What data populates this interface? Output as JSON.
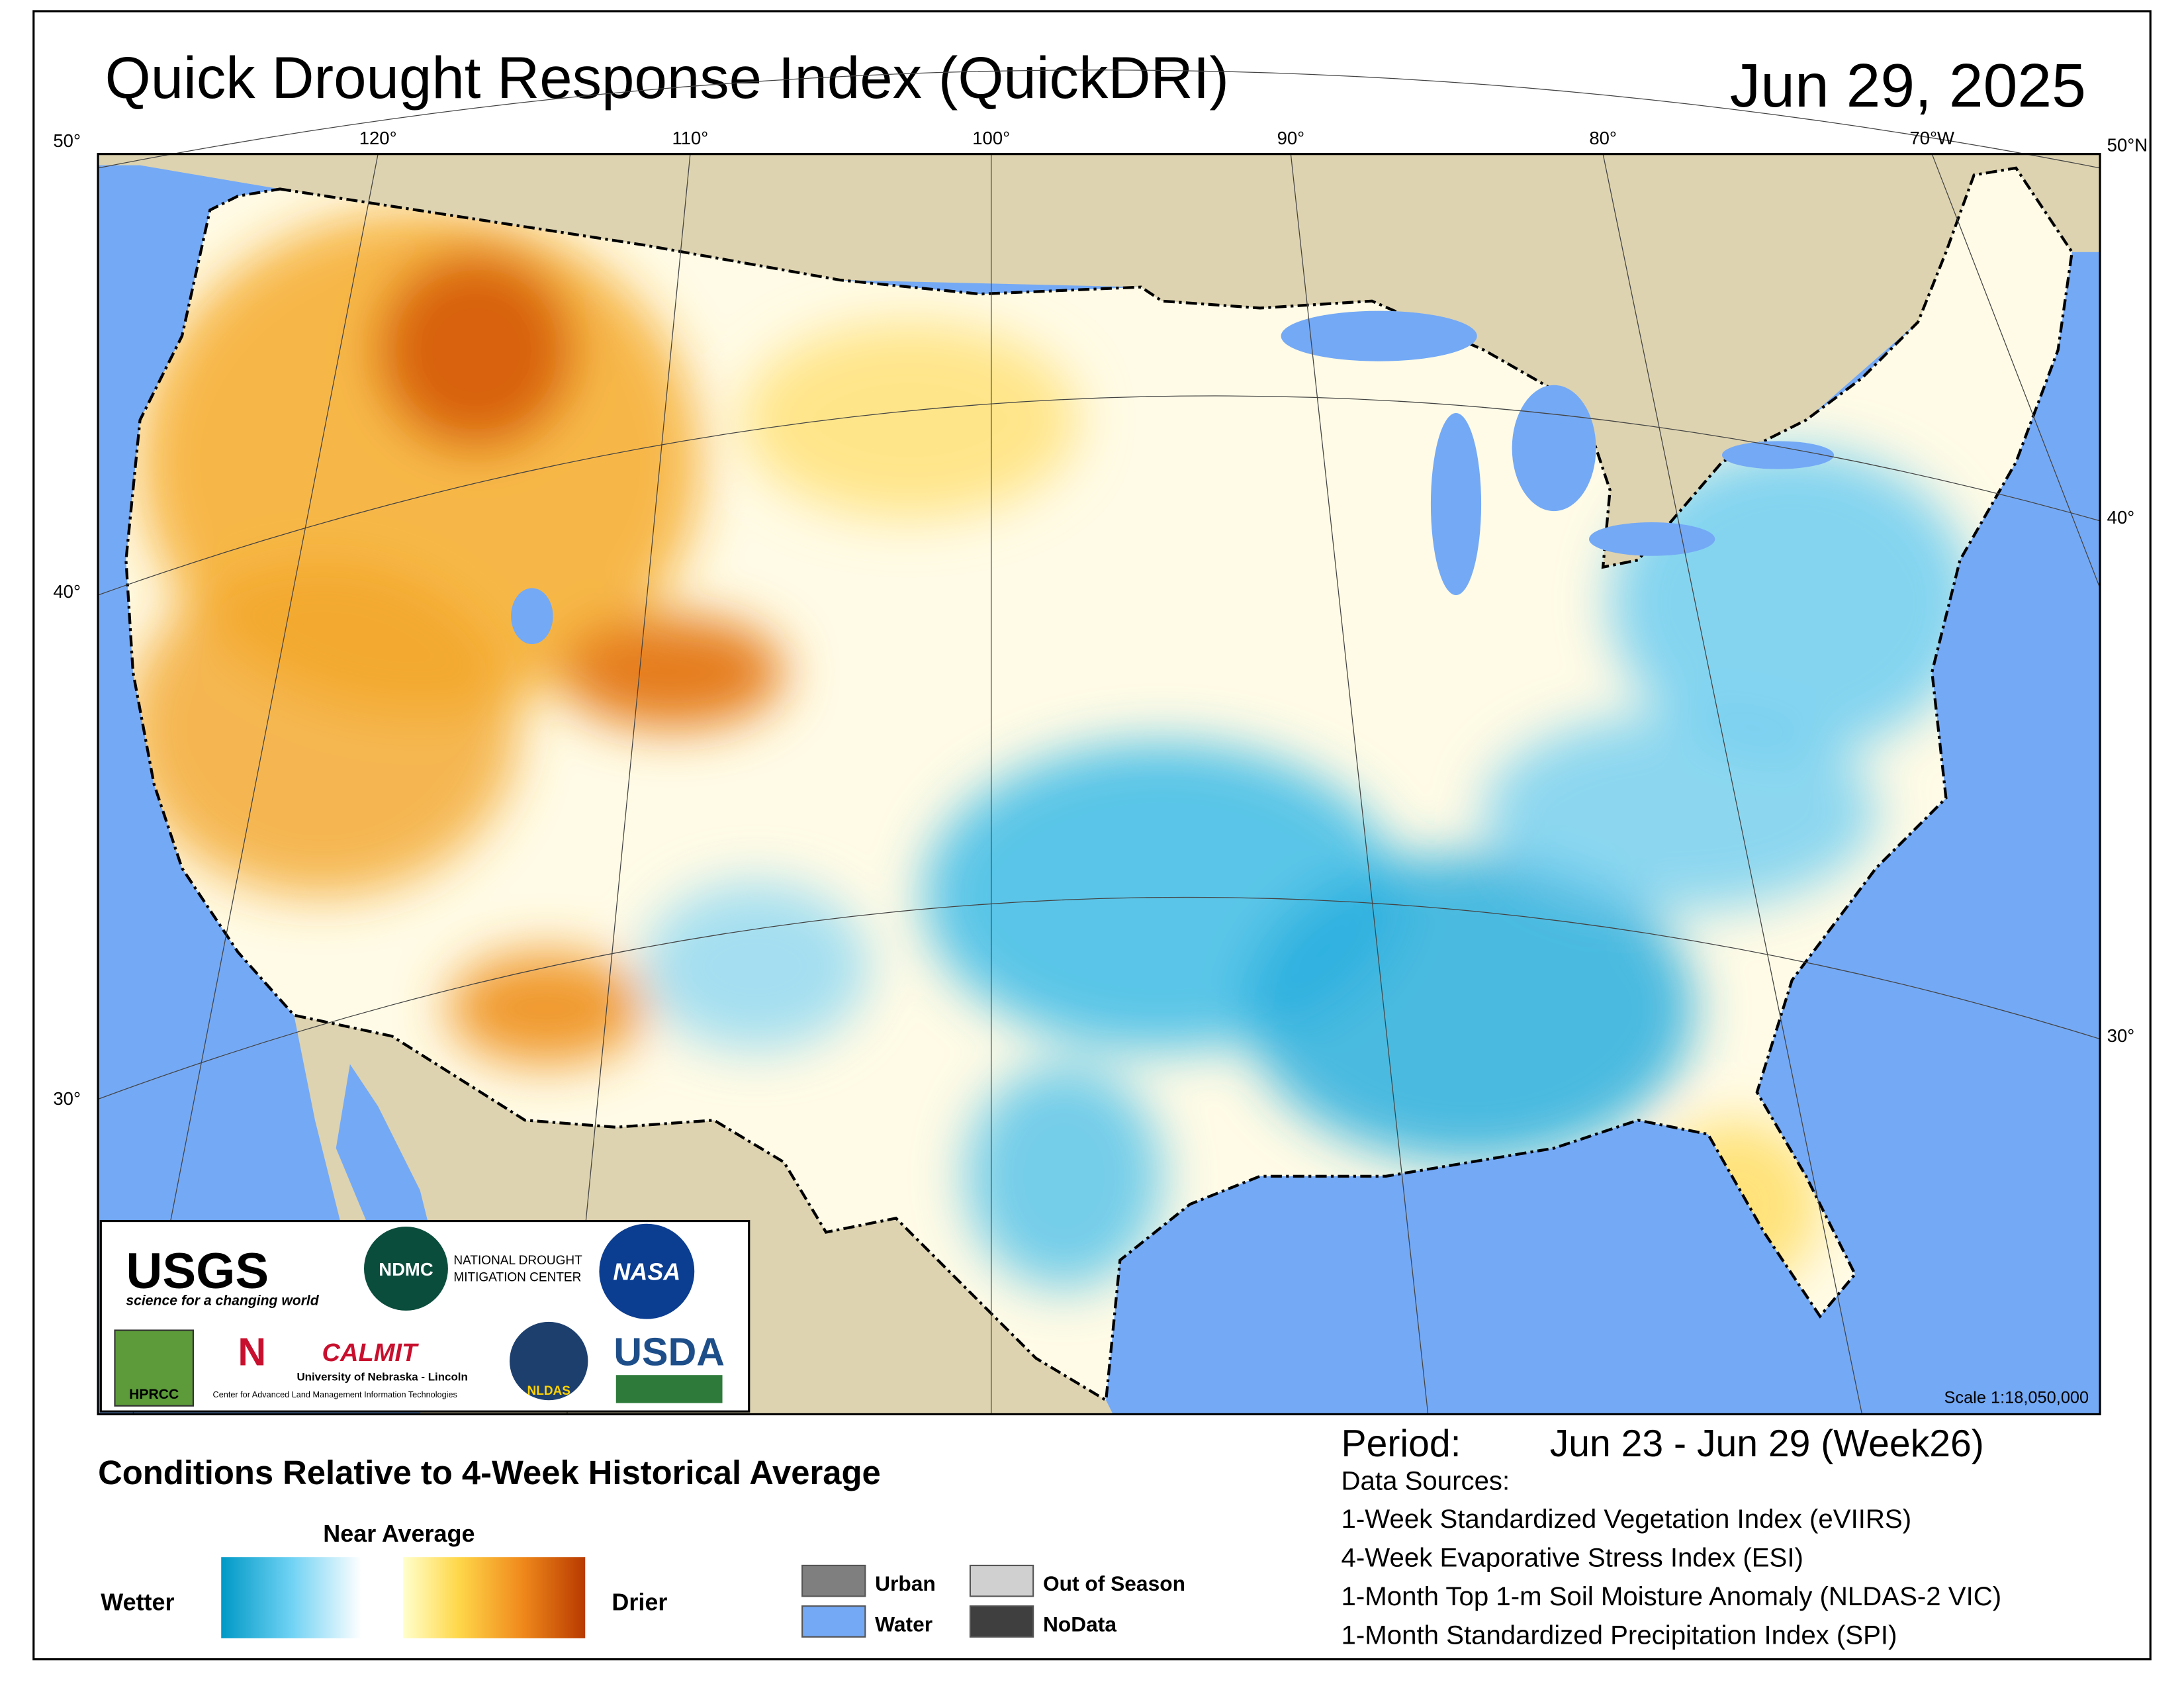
{
  "title": "Quick Drought Response Index (QuickDRI)",
  "date": "Jun 29, 2025",
  "map": {
    "lon_labels": [
      "120°",
      "110°",
      "100°",
      "90°",
      "80°",
      "70°W"
    ],
    "lat_labels_left": [
      "50°",
      "40°",
      "30°"
    ],
    "lat_labels_right": [
      "50°N",
      "40°",
      "30°"
    ],
    "scale": "Scale 1:18,050,000"
  },
  "logos": {
    "usgs": "USGS",
    "usgs_tagline": "science for a changing world",
    "ndmc": "NDMC",
    "ndmc_name_1": "NATIONAL DROUGHT",
    "ndmc_name_2": "MITIGATION CENTER",
    "nasa": "NASA",
    "hprcc": "HPRCC",
    "calmit": "CALMIT",
    "calmit_univ": "University of Nebraska - Lincoln",
    "calmit_full": "Center for Advanced Land Management Information Technologies",
    "nldas": "NLDAS",
    "usda": "USDA"
  },
  "legend": {
    "heading": "Conditions Relative to 4-Week Historical Average",
    "near": "Near Average",
    "wetter": "Wetter",
    "drier": "Drier",
    "items": [
      "Urban",
      "Water",
      "Out of Season",
      "NoData"
    ]
  },
  "period": {
    "label": "Period:",
    "value": "Jun 23 - Jun 29 (Week26)"
  },
  "sources": {
    "heading": "Data Sources:",
    "items": [
      "1-Week Standardized Vegetation Index (eVIIRS)",
      "4-Week Evaporative Stress Index (ESI)",
      "1-Month Top 1-m Soil Moisture Anomaly (NLDAS-2 VIC)",
      "1-Month Standardized Precipitation Index (SPI)"
    ]
  }
}
